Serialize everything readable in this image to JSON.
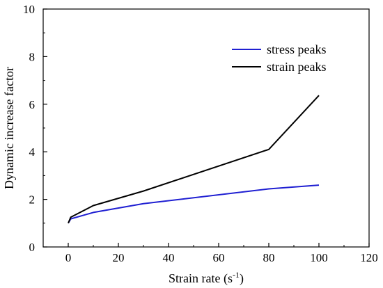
{
  "chart_data": {
    "type": "line",
    "xlabel": "Strain rate (s",
    "xlabel_sup": "-1",
    "xlabel_close": ")",
    "ylabel": "Dynamic increase factor",
    "xlim": [
      -10,
      120
    ],
    "ylim": [
      0,
      10
    ],
    "xticks": [
      0,
      20,
      40,
      60,
      80,
      100,
      120
    ],
    "yticks": [
      0,
      2,
      4,
      6,
      8,
      10
    ],
    "grid": false,
    "legend_position": "top-right",
    "series": [
      {
        "name": "stress peaks",
        "color": "#1f1fd2",
        "x": [
          0,
          1,
          10,
          30,
          80,
          100
        ],
        "y": [
          1.0,
          1.18,
          1.45,
          1.82,
          2.44,
          2.6
        ]
      },
      {
        "name": "strain peaks",
        "color": "#000000",
        "x": [
          0,
          1,
          10,
          30,
          80,
          100
        ],
        "y": [
          1.0,
          1.25,
          1.74,
          2.35,
          4.1,
          6.37
        ]
      }
    ]
  }
}
